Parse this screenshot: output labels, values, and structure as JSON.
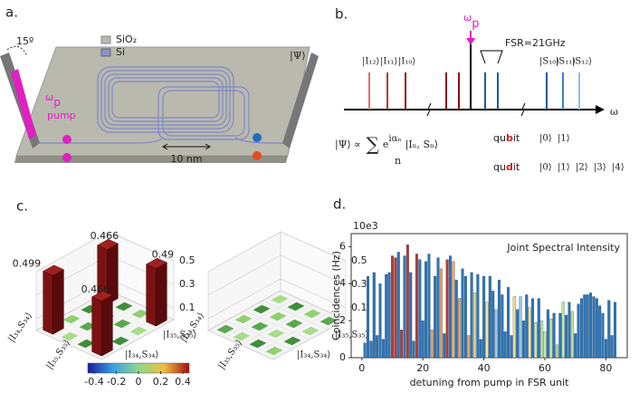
{
  "panel_a": {
    "label": "a.",
    "angle": "15º",
    "legend": [
      "SiO₂",
      "Si"
    ],
    "pump_symbol": "ω",
    "pump_sub": "p",
    "pump_word": "pump",
    "scale": "10 nm",
    "state": "|Ψ⟩"
  },
  "panel_b": {
    "label": "b.",
    "idler_labels": [
      "|I₁₂⟩",
      "|I₁₁⟩",
      "|I₁₀⟩"
    ],
    "signal_labels": [
      "|S₁₀⟩",
      "|S₁₁⟩",
      "|S₁₂⟩"
    ],
    "pump_symbol": "ω",
    "pump_sub": "p",
    "fsr": "FSR=21GHz",
    "axis": "ω",
    "formula": [
      "|Ψ⟩ ∝",
      "∑",
      "n",
      "e",
      "iαₙ",
      "|Iₙ, Sₙ⟩"
    ],
    "qubit": [
      "qu",
      "b",
      "it"
    ],
    "qubit_kets": [
      "|0⟩",
      "|1⟩"
    ],
    "qudit": [
      "qu",
      "d",
      "it"
    ],
    "qudit_kets": [
      "|0⟩",
      "|1⟩",
      "|2⟩",
      "|3⟩",
      "|4⟩"
    ]
  },
  "panel_c": {
    "label": "c.",
    "bars": [
      0.499,
      0.466,
      0.49,
      0.466
    ],
    "zticks": [
      0.1,
      0.3,
      0.5
    ],
    "axis_labels": [
      "|I₃₄,S₃₄⟩",
      "|I₃₅,S₃₅⟩"
    ],
    "bar_color": "#7a1212",
    "colorbar_ticks": [
      -0.4,
      -0.2,
      0,
      0.2,
      0.4
    ]
  },
  "chart_data": {
    "type": "bar",
    "label": "d.",
    "title": "Joint Spectral Intensity",
    "x_label": "detuning from pump  in FSR unit",
    "y_label": "Coincidences (Hz)",
    "y_multiplier": "10e3",
    "x": [
      1,
      2,
      3,
      4,
      5,
      6,
      7,
      8,
      9,
      10,
      11,
      12,
      13,
      14,
      15,
      16,
      17,
      18,
      19,
      20,
      21,
      22,
      23,
      24,
      25,
      26,
      27,
      28,
      29,
      30,
      31,
      32,
      33,
      34,
      35,
      36,
      37,
      38,
      39,
      40,
      41,
      42,
      43,
      44,
      45,
      46,
      47,
      48,
      49,
      50,
      51,
      52,
      53,
      54,
      55,
      56,
      57,
      58,
      59,
      60,
      61,
      62,
      63,
      64,
      65,
      66,
      67,
      68,
      69,
      70,
      71,
      72,
      73,
      74,
      75,
      76,
      77,
      78,
      79,
      80,
      81,
      82,
      83
    ],
    "values": [
      0.8,
      4.4,
      0.9,
      4.6,
      1.2,
      4.0,
      1.0,
      4.5,
      4.6,
      5.5,
      5.4,
      5.7,
      1.5,
      5.5,
      6.1,
      4.6,
      0.9,
      5.6,
      5.3,
      2.0,
      5.2,
      5.6,
      1.5,
      4.4,
      5.4,
      4.8,
      1.3,
      5.3,
      5.5,
      5.2,
      4.2,
      3.2,
      4.8,
      4.4,
      1.2,
      4.6,
      3.5,
      4.5,
      1.0,
      4.4,
      3.0,
      4.4,
      3.6,
      2.6,
      4.2,
      3.4,
      1.4,
      3.8,
      1.2,
      3.3,
      2.6,
      3.3,
      2.0,
      3.4,
      2.7,
      3.2,
      1.9,
      3.2,
      2.0,
      1.4,
      2.6,
      2.1,
      2.4,
      0.7,
      2.4,
      3.0,
      2.3,
      3.0,
      2.5,
      1.3,
      2.9,
      3.2,
      3.4,
      3.4,
      3.5,
      3.3,
      3.2,
      2.8,
      2.4,
      1.0,
      3.1,
      1.2,
      3.0
    ],
    "colors": [
      "#2e75b6",
      "#2e75b6",
      "#2e75b6",
      "#2e75b6",
      "#2e75b6",
      "#2e75b6",
      "#2e75b6",
      "#2e75b6",
      "#2e75b6",
      "#c0392b",
      "#c0392b",
      "#2e75b6",
      "#c0392b",
      "#2e75b6",
      "#c0392b",
      "#2e75b6",
      "#2e75b6",
      "#c0392b",
      "#2e75b6",
      "#2e75b6",
      "#2e75b6",
      "#2e75b6",
      "#f0a860",
      "#2e75b6",
      "#2e75b6",
      "#f0a860",
      "#2e75b6",
      "#c0392b",
      "#2e75b6",
      "#f0a860",
      "#2e75b6",
      "#f0a860",
      "#2e75b6",
      "#2e75b6",
      "#f0a860",
      "#2e75b6",
      "#f5e58a",
      "#2e75b6",
      "#2e75b6",
      "#2e75b6",
      "#f5e58a",
      "#2e75b6",
      "#2e75b6",
      "#9cc3e0",
      "#2e75b6",
      "#2e75b6",
      "#2e75b6",
      "#2e75b6",
      "#2e75b6",
      "#f5e58a",
      "#2e75b6",
      "#9cc3e0",
      "#2e75b6",
      "#2e75b6",
      "#f5e58a",
      "#2e75b6",
      "#c6e6a0",
      "#2e75b6",
      "#c6e6a0",
      "#c6e6a0",
      "#2e75b6",
      "#c6e6a0",
      "#2e75b6",
      "#c6e6a0",
      "#2e75b6",
      "#c6e6a0",
      "#2e75b6",
      "#2e75b6",
      "#c6e6a0",
      "#2e75b6",
      "#2e75b6",
      "#2e75b6",
      "#2e75b6",
      "#2e75b6",
      "#2e75b6",
      "#2e75b6",
      "#2e75b6",
      "#2e75b6",
      "#2e75b6",
      "#2e75b6",
      "#2e75b6",
      "#2e75b6",
      "#2e75b6"
    ],
    "xlim": [
      -3.5,
      87
    ],
    "ylim": [
      0,
      6.7
    ],
    "xticks": [
      0,
      20,
      40,
      60,
      80
    ],
    "yticks": [
      0,
      2,
      4,
      6
    ]
  }
}
